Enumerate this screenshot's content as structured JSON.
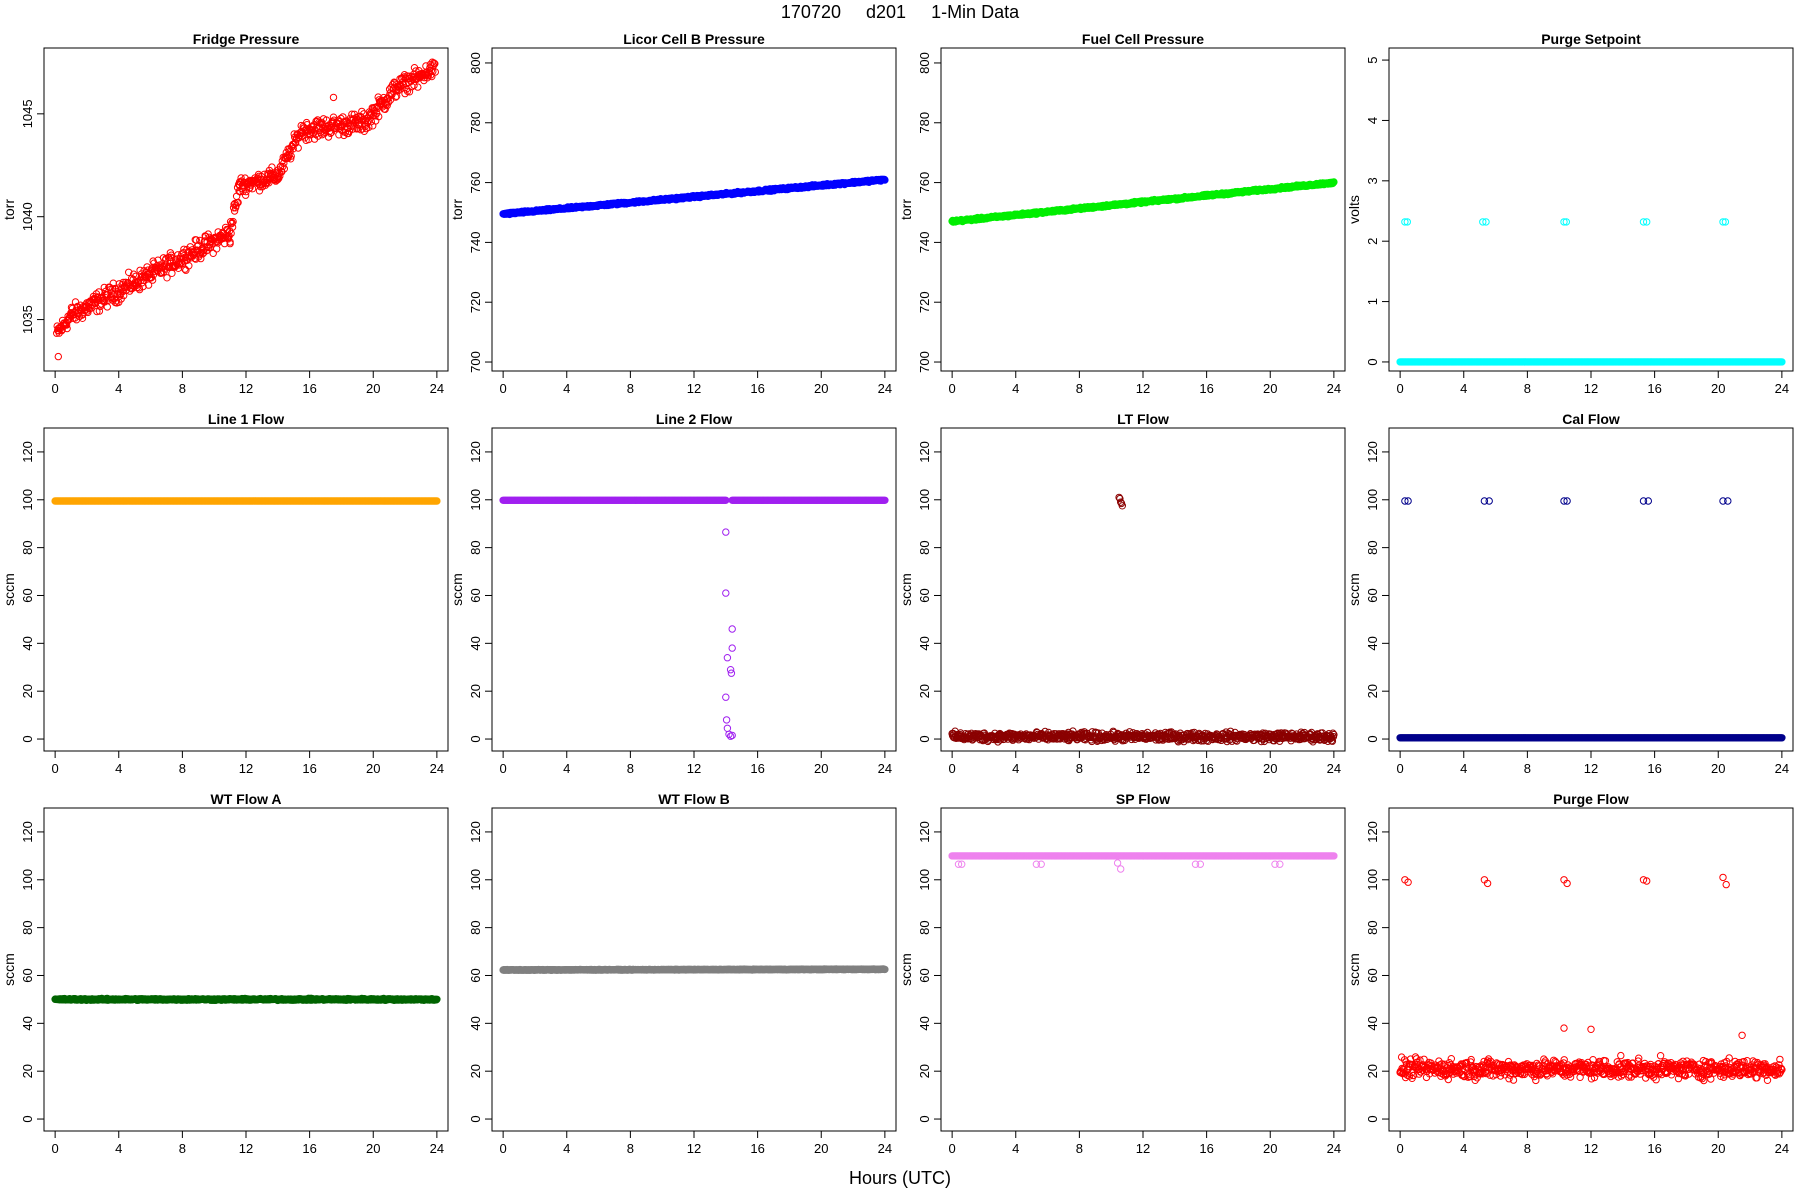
{
  "figure": {
    "title_parts": [
      "170720",
      "d201",
      "1-Min Data"
    ],
    "xlabel": "Hours (UTC)",
    "x_ticks": [
      0,
      4,
      8,
      12,
      16,
      20,
      24
    ]
  },
  "chart_data": [
    {
      "type": "scatter",
      "title": "Fridge Pressure",
      "ylabel": "torr",
      "xlim": [
        0,
        24
      ],
      "ylim": [
        1032.5,
        1048.2
      ],
      "yticks": [
        1035,
        1040,
        1045
      ],
      "color": "#ff0000",
      "marker": "open-circle",
      "series": [
        {
          "segments": [
            {
              "x0": 0.1,
              "x1": 1.0,
              "y0": 1034.3,
              "y1": 1035.2,
              "noise": 0.6
            },
            {
              "x0": 1.0,
              "x1": 11.0,
              "y0": 1035.2,
              "y1": 1039.2,
              "noise": 0.7
            },
            {
              "x0": 11.0,
              "x1": 11.6,
              "y0": 1039.2,
              "y1": 1041.5,
              "noise": 0.8
            },
            {
              "x0": 11.6,
              "x1": 14.0,
              "y0": 1041.5,
              "y1": 1042.0,
              "noise": 0.6
            },
            {
              "x0": 14.0,
              "x1": 15.5,
              "y0": 1042.0,
              "y1": 1044.2,
              "noise": 0.6
            },
            {
              "x0": 15.5,
              "x1": 19.5,
              "y0": 1044.2,
              "y1": 1044.6,
              "noise": 0.7
            },
            {
              "x0": 19.5,
              "x1": 21.5,
              "y0": 1044.6,
              "y1": 1046.3,
              "noise": 0.7
            },
            {
              "x0": 21.5,
              "x1": 23.9,
              "y0": 1046.3,
              "y1": 1047.2,
              "noise": 0.6
            }
          ],
          "outliers": [
            {
              "x": 0.2,
              "y": 1033.2
            },
            {
              "x": 17.5,
              "y": 1045.8
            },
            {
              "x": 22.8,
              "y": 1046.3
            }
          ]
        }
      ]
    },
    {
      "type": "scatter",
      "title": "Licor Cell B Pressure",
      "ylabel": "torr",
      "xlim": [
        0,
        24
      ],
      "ylim": [
        697,
        805
      ],
      "yticks": [
        700,
        720,
        740,
        760,
        780,
        800
      ],
      "color": "#0000ff",
      "marker": "filled",
      "series": [
        {
          "segments": [
            {
              "x0": 0.0,
              "x1": 24.0,
              "y0": 749.5,
              "y1": 761.0,
              "noise": 0.5
            }
          ],
          "outliers": []
        }
      ]
    },
    {
      "type": "scatter",
      "title": "Fuel Cell Pressure",
      "ylabel": "torr",
      "xlim": [
        0,
        24
      ],
      "ylim": [
        697,
        805
      ],
      "yticks": [
        700,
        720,
        740,
        760,
        780,
        800
      ],
      "color": "#00ee00",
      "marker": "filled",
      "series": [
        {
          "segments": [
            {
              "x0": 0.0,
              "x1": 24.0,
              "y0": 747.0,
              "y1": 760.0,
              "noise": 0.5
            }
          ],
          "outliers": []
        }
      ]
    },
    {
      "type": "scatter",
      "title": "Purge Setpoint",
      "ylabel": "volts",
      "xlim": [
        0,
        24
      ],
      "ylim": [
        -0.15,
        5.2
      ],
      "yticks": [
        0,
        1,
        2,
        3,
        4,
        5
      ],
      "color": "#00ffff",
      "marker": "filled",
      "series": [
        {
          "segments": [
            {
              "x0": 0.0,
              "x1": 24.0,
              "y0": 0.0,
              "y1": 0.0,
              "noise": 0.0
            }
          ],
          "outliers": [
            {
              "x": 0.3,
              "y": 2.32
            },
            {
              "x": 0.45,
              "y": 2.32
            },
            {
              "x": 5.2,
              "y": 2.32
            },
            {
              "x": 5.4,
              "y": 2.32
            },
            {
              "x": 10.3,
              "y": 2.32
            },
            {
              "x": 10.45,
              "y": 2.32
            },
            {
              "x": 15.3,
              "y": 2.32
            },
            {
              "x": 15.5,
              "y": 2.32
            },
            {
              "x": 20.3,
              "y": 2.32
            },
            {
              "x": 20.45,
              "y": 2.32
            }
          ]
        }
      ]
    },
    {
      "type": "scatter",
      "title": "Line 1 Flow",
      "ylabel": "sccm",
      "xlim": [
        0,
        24
      ],
      "ylim": [
        -5,
        130
      ],
      "yticks": [
        0,
        20,
        40,
        60,
        80,
        100,
        120
      ],
      "color": "#ffa500",
      "marker": "filled",
      "series": [
        {
          "segments": [
            {
              "x0": 0.0,
              "x1": 24.0,
              "y0": 99.5,
              "y1": 99.5,
              "noise": 0.0
            }
          ],
          "outliers": []
        }
      ]
    },
    {
      "type": "scatter",
      "title": "Line 2 Flow",
      "ylabel": "sccm",
      "xlim": [
        0,
        24
      ],
      "ylim": [
        -5,
        130
      ],
      "yticks": [
        0,
        20,
        40,
        60,
        80,
        100,
        120
      ],
      "color": "#a020f0",
      "marker": "filled",
      "series": [
        {
          "segments": [
            {
              "x0": 0.0,
              "x1": 14.0,
              "y0": 99.8,
              "y1": 99.8,
              "noise": 0.0
            },
            {
              "x0": 14.4,
              "x1": 24.0,
              "y0": 99.8,
              "y1": 99.8,
              "noise": 0.0
            }
          ],
          "outliers": [
            {
              "x": 14.0,
              "y": 86.5
            },
            {
              "x": 14.0,
              "y": 61
            },
            {
              "x": 14.4,
              "y": 46
            },
            {
              "x": 14.4,
              "y": 38
            },
            {
              "x": 14.1,
              "y": 34
            },
            {
              "x": 14.3,
              "y": 29
            },
            {
              "x": 14.35,
              "y": 27.5
            },
            {
              "x": 14.0,
              "y": 17.5
            },
            {
              "x": 14.05,
              "y": 8
            },
            {
              "x": 14.1,
              "y": 4.5
            },
            {
              "x": 14.2,
              "y": 2
            },
            {
              "x": 14.3,
              "y": 1.2
            },
            {
              "x": 14.4,
              "y": 1.5
            }
          ]
        }
      ]
    },
    {
      "type": "scatter",
      "title": "LT Flow",
      "ylabel": "sccm",
      "xlim": [
        0,
        24
      ],
      "ylim": [
        -5,
        130
      ],
      "yticks": [
        0,
        20,
        40,
        60,
        80,
        100,
        120
      ],
      "color": "#8b0000",
      "marker": "open-circle",
      "series": [
        {
          "segments": [
            {
              "x0": 0.0,
              "x1": 24.0,
              "y0": 1.0,
              "y1": 1.0,
              "noise": 2.6
            }
          ],
          "outliers": [
            {
              "x": 10.5,
              "y": 101
            },
            {
              "x": 10.6,
              "y": 99
            },
            {
              "x": 10.7,
              "y": 97.5
            },
            {
              "x": 10.55,
              "y": 100.5
            },
            {
              "x": 10.65,
              "y": 98.5
            }
          ]
        }
      ]
    },
    {
      "type": "scatter",
      "title": "Cal Flow",
      "ylabel": "sccm",
      "xlim": [
        0,
        24
      ],
      "ylim": [
        -5,
        130
      ],
      "yticks": [
        0,
        20,
        40,
        60,
        80,
        100,
        120
      ],
      "color": "#00008b",
      "marker": "filled",
      "series": [
        {
          "segments": [
            {
              "x0": 0.0,
              "x1": 24.0,
              "y0": 0.5,
              "y1": 0.5,
              "noise": 0.0
            }
          ],
          "outliers": [
            {
              "x": 0.3,
              "y": 99.5
            },
            {
              "x": 0.5,
              "y": 99.5
            },
            {
              "x": 5.3,
              "y": 99.5
            },
            {
              "x": 5.6,
              "y": 99.5
            },
            {
              "x": 10.3,
              "y": 99.5
            },
            {
              "x": 10.5,
              "y": 99.5
            },
            {
              "x": 15.3,
              "y": 99.5
            },
            {
              "x": 15.6,
              "y": 99.5
            },
            {
              "x": 20.3,
              "y": 99.5
            },
            {
              "x": 20.6,
              "y": 99.5
            }
          ]
        }
      ]
    },
    {
      "type": "scatter",
      "title": "WT Flow A",
      "ylabel": "sccm",
      "xlim": [
        0,
        24
      ],
      "ylim": [
        -5,
        130
      ],
      "yticks": [
        0,
        20,
        40,
        60,
        80,
        100,
        120
      ],
      "color": "#006400",
      "marker": "filled",
      "series": [
        {
          "segments": [
            {
              "x0": 0.0,
              "x1": 24.0,
              "y0": 50.0,
              "y1": 50.0,
              "noise": 0.5
            }
          ],
          "outliers": []
        }
      ]
    },
    {
      "type": "scatter",
      "title": "WT Flow B",
      "ylabel": "",
      "xlim": [
        0,
        24
      ],
      "ylim": [
        -5,
        130
      ],
      "yticks": [
        0,
        20,
        40,
        60,
        80,
        100,
        120
      ],
      "color": "#808080",
      "marker": "filled",
      "series": [
        {
          "segments": [
            {
              "x0": 0.0,
              "x1": 24.0,
              "y0": 62.3,
              "y1": 62.6,
              "noise": 0.2
            }
          ],
          "outliers": []
        }
      ]
    },
    {
      "type": "scatter",
      "title": "SP Flow",
      "ylabel": "sccm",
      "xlim": [
        0,
        24
      ],
      "ylim": [
        -5,
        130
      ],
      "yticks": [
        0,
        20,
        40,
        60,
        80,
        100,
        120
      ],
      "color": "#ee82ee",
      "marker": "filled",
      "series": [
        {
          "segments": [
            {
              "x0": 0.0,
              "x1": 24.0,
              "y0": 110.0,
              "y1": 110.0,
              "noise": 0.0
            }
          ],
          "outliers": [
            {
              "x": 0.4,
              "y": 106.5
            },
            {
              "x": 0.6,
              "y": 106.5
            },
            {
              "x": 5.3,
              "y": 106.5
            },
            {
              "x": 5.6,
              "y": 106.5
            },
            {
              "x": 10.4,
              "y": 107
            },
            {
              "x": 10.6,
              "y": 104.5
            },
            {
              "x": 15.3,
              "y": 106.5
            },
            {
              "x": 15.6,
              "y": 106.5
            },
            {
              "x": 20.3,
              "y": 106.5
            },
            {
              "x": 20.6,
              "y": 106.5
            }
          ]
        }
      ]
    },
    {
      "type": "scatter",
      "title": "Purge Flow",
      "ylabel": "sccm",
      "xlim": [
        0,
        24
      ],
      "ylim": [
        -5,
        130
      ],
      "yticks": [
        0,
        20,
        40,
        60,
        80,
        100,
        120
      ],
      "color": "#ff0000",
      "marker": "open-circle",
      "series": [
        {
          "segments": [
            {
              "x0": 0.0,
              "x1": 24.0,
              "y0": 21.0,
              "y1": 21.0,
              "noise": 5.5
            }
          ],
          "outliers": [
            {
              "x": 0.3,
              "y": 100
            },
            {
              "x": 0.5,
              "y": 99
            },
            {
              "x": 5.3,
              "y": 100
            },
            {
              "x": 5.5,
              "y": 98.5
            },
            {
              "x": 10.3,
              "y": 100
            },
            {
              "x": 10.5,
              "y": 98.5
            },
            {
              "x": 15.3,
              "y": 100
            },
            {
              "x": 15.5,
              "y": 99.5
            },
            {
              "x": 20.3,
              "y": 101
            },
            {
              "x": 20.5,
              "y": 98
            },
            {
              "x": 10.3,
              "y": 38
            },
            {
              "x": 12.0,
              "y": 37.5
            },
            {
              "x": 21.5,
              "y": 35
            }
          ]
        }
      ]
    }
  ]
}
